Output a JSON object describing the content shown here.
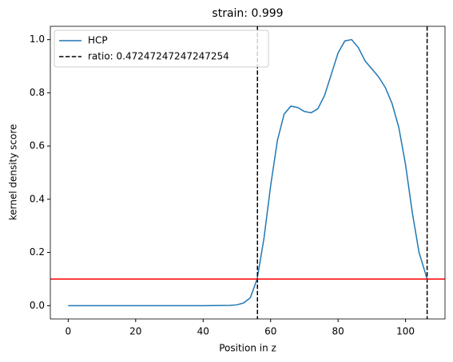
{
  "chart_data": {
    "type": "line",
    "title": "strain: 0.999",
    "x_label": "Position in z",
    "y_label": "kernel density score",
    "xlim": [
      -5.3,
      111.7
    ],
    "ylim": [
      -0.05,
      1.05
    ],
    "xticks": [
      0,
      20,
      40,
      60,
      80,
      100
    ],
    "yticks": [
      {
        "value": 0,
        "label": "0.0"
      },
      {
        "value": 0.2,
        "label": "0.2"
      },
      {
        "value": 0.4,
        "label": "0.4"
      },
      {
        "value": 0.6,
        "label": "0.6"
      },
      {
        "value": 0.8,
        "label": "0.8"
      },
      {
        "value": 1,
        "label": "1.0"
      }
    ],
    "series": [
      {
        "name": "HCP",
        "color": "#1f77b4",
        "x": [
          0,
          10,
          20,
          30,
          40,
          48,
          50,
          52,
          54,
          56,
          58,
          60,
          62,
          64,
          66,
          68,
          70,
          72,
          74,
          76,
          78,
          80,
          82,
          84,
          86,
          88,
          90,
          92,
          94,
          96,
          98,
          100,
          102,
          104,
          106.4
        ],
        "values": [
          0,
          0,
          0,
          0,
          0,
          0.001,
          0.003,
          0.01,
          0.03,
          0.1,
          0.25,
          0.45,
          0.62,
          0.72,
          0.75,
          0.745,
          0.73,
          0.725,
          0.74,
          0.79,
          0.87,
          0.95,
          0.995,
          1.0,
          0.97,
          0.92,
          0.89,
          0.86,
          0.82,
          0.76,
          0.67,
          0.53,
          0.35,
          0.2,
          0.1
        ]
      }
    ],
    "vlines": {
      "name": "ratio: 0.47247247247247254",
      "color": "#000000",
      "x": [
        56.1,
        106.4
      ]
    },
    "hline": {
      "y": 0.1,
      "color": "#ff0000"
    },
    "legend": "upper left"
  }
}
